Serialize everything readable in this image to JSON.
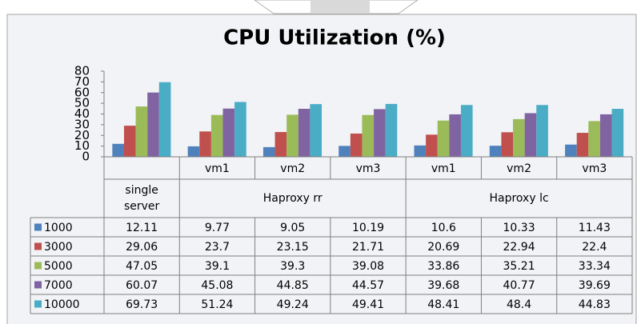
{
  "chart_data": {
    "type": "bar",
    "title": "CPU Utilization (%)",
    "categories": [
      null,
      "vm1",
      "vm2",
      "vm3",
      "vm1",
      "vm2",
      "vm3"
    ],
    "category_groups": [
      "single server",
      "Haproxy rr",
      "Haproxy lc"
    ],
    "series": [
      {
        "name": "1000",
        "color": "#4f81bd",
        "values": [
          12.11,
          9.77,
          9.05,
          10.19,
          10.6,
          10.33,
          11.43
        ]
      },
      {
        "name": "3000",
        "color": "#c0504d",
        "values": [
          29.06,
          23.7,
          23.15,
          21.71,
          20.69,
          22.94,
          22.4
        ]
      },
      {
        "name": "5000",
        "color": "#9bbb59",
        "values": [
          47.05,
          39.1,
          39.3,
          39.08,
          33.86,
          35.21,
          33.34
        ]
      },
      {
        "name": "7000",
        "color": "#8064a2",
        "values": [
          60.07,
          45.08,
          44.85,
          44.57,
          39.68,
          40.77,
          39.69
        ]
      },
      {
        "name": "10000",
        "color": "#4bacc6",
        "values": [
          69.73,
          51.24,
          49.24,
          49.41,
          48.41,
          48.4,
          44.83
        ]
      }
    ],
    "ylim": [
      0,
      80
    ],
    "yticks": [
      0,
      10,
      20,
      30,
      40,
      50,
      60,
      70,
      80
    ],
    "grid": false,
    "legend": "table"
  }
}
